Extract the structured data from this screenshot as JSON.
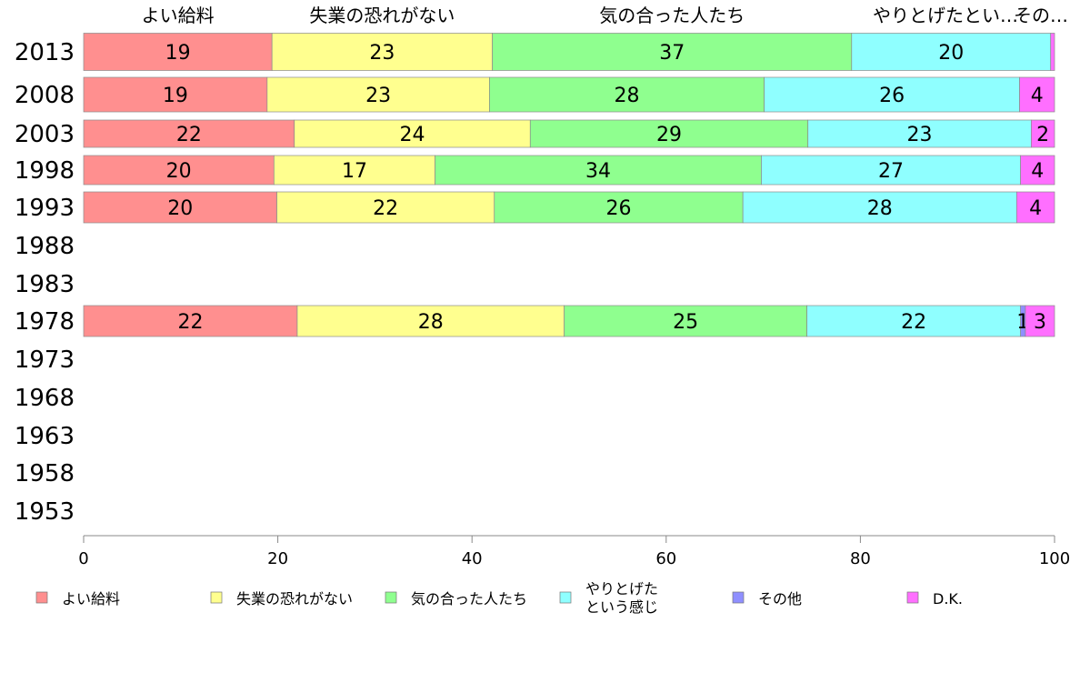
{
  "chart_data": {
    "type": "bar",
    "orientation": "horizontal",
    "stacked": true,
    "categories": [
      "2013",
      "2008",
      "2003",
      "1998",
      "1993",
      "1988",
      "1983",
      "1978",
      "1973",
      "1968",
      "1963",
      "1958",
      "1953"
    ],
    "series": [
      {
        "name": "よい給料",
        "color": "#ff8f8f",
        "values": [
          19.4,
          18.9,
          21.7,
          19.6,
          19.9,
          null,
          null,
          22.0,
          null,
          null,
          null,
          null,
          null
        ],
        "labels": [
          "19",
          "19",
          "22",
          "20",
          "20",
          "",
          "",
          "22",
          "",
          "",
          "",
          "",
          ""
        ]
      },
      {
        "name": "失業の恐れがない",
        "color": "#ffff8f",
        "values": [
          22.7,
          22.9,
          24.3,
          16.6,
          22.4,
          null,
          null,
          27.5,
          null,
          null,
          null,
          null,
          null
        ],
        "labels": [
          "23",
          "23",
          "24",
          "17",
          "22",
          "",
          "",
          "28",
          "",
          "",
          "",
          "",
          ""
        ]
      },
      {
        "name": "気の合った人たち",
        "color": "#8fff8f",
        "values": [
          37.0,
          28.3,
          28.6,
          33.6,
          25.6,
          null,
          null,
          25.0,
          null,
          null,
          null,
          null,
          null
        ],
        "labels": [
          "37",
          "28",
          "29",
          "34",
          "26",
          "",
          "",
          "25",
          "",
          "",
          "",
          "",
          ""
        ]
      },
      {
        "name": "やりとげたという感じ",
        "color": "#8fffff",
        "values": [
          20.5,
          26.3,
          23.0,
          26.7,
          28.2,
          null,
          null,
          22.0,
          null,
          null,
          null,
          null,
          null
        ],
        "labels": [
          "20",
          "26",
          "23",
          "27",
          "28",
          "",
          "",
          "22",
          "",
          "",
          "",
          "",
          ""
        ]
      },
      {
        "name": "その他",
        "color": "#8f8fff",
        "values": [
          0.0,
          0.0,
          0.0,
          0.0,
          0.0,
          null,
          null,
          0.5,
          null,
          null,
          null,
          null,
          null
        ],
        "labels": [
          "",
          "",
          "",
          "",
          "",
          "",
          "",
          "1",
          "",
          "",
          "",
          "",
          ""
        ]
      },
      {
        "name": "D.K.",
        "color": "#ff6fff",
        "values": [
          0.4,
          3.6,
          2.4,
          3.5,
          3.9,
          null,
          null,
          3.0,
          null,
          null,
          null,
          null,
          null
        ],
        "labels": [
          "",
          "4",
          "2",
          "4",
          "4",
          "",
          "",
          "3",
          "",
          "",
          "",
          "",
          ""
        ]
      }
    ],
    "top_labels": [
      "よい給料",
      "失業の恐れがない",
      "気の合った人たち",
      "やりとげたとい…",
      "その…"
    ],
    "xlim": [
      0,
      100
    ],
    "xticks": [
      "0",
      "20",
      "40",
      "60",
      "80",
      "100"
    ],
    "legend": {
      "placement": "bottom",
      "items": [
        {
          "lines": [
            "よい給料"
          ],
          "color": "#ff8f8f"
        },
        {
          "lines": [
            "失業の恐れがない"
          ],
          "color": "#ffff8f"
        },
        {
          "lines": [
            "気の合った人たち"
          ],
          "color": "#8fff8f"
        },
        {
          "lines": [
            "やりとげた",
            "という感じ"
          ],
          "color": "#8fffff"
        },
        {
          "lines": [
            "その他"
          ],
          "color": "#8f8fff"
        },
        {
          "lines": [
            "D.K."
          ],
          "color": "#ff6fff"
        }
      ]
    },
    "grid": false
  }
}
